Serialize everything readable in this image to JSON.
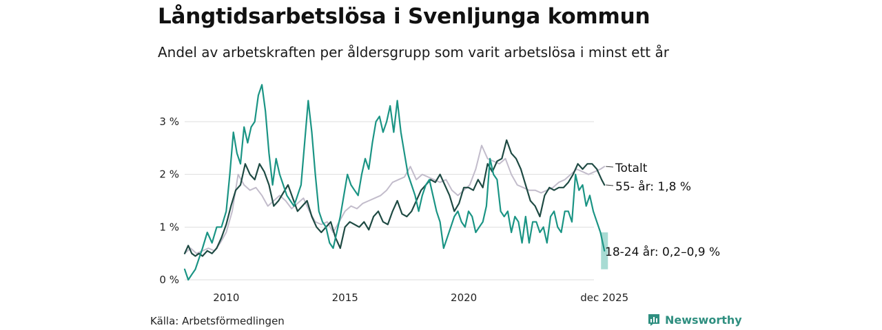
{
  "header": {
    "title": "Långtidsarbetslösa i Svenljunga kommun",
    "subtitle": "Andel av arbetskraften per åldersgrupp som varit arbetslösa i minst ett år"
  },
  "footer": {
    "source": "Källa: Arbetsförmedlingen",
    "brand": "Newsworthy"
  },
  "colors": {
    "totalt": "#c2bccb",
    "age55": "#1e4a43",
    "age1824": "#1a9484",
    "band": "#a8dbd3",
    "grid": "#dddddd"
  },
  "chart_data": {
    "type": "line",
    "title": "Långtidsarbetslösa i Svenljunga kommun",
    "subtitle": "Andel av arbetskraften per åldersgrupp som varit arbetslösa i minst ett år",
    "xlabel": "",
    "ylabel": "",
    "xlim": [
      2008.25,
      2026.0
    ],
    "ylim": [
      0,
      3.8
    ],
    "grid": true,
    "y_ticks": [
      0,
      1,
      2,
      3
    ],
    "y_tick_labels": [
      "0 %",
      "1 %",
      "2 %",
      "3 %"
    ],
    "x_ticks": [
      2010,
      2015,
      2020,
      2025.92
    ],
    "x_tick_labels": [
      "2010",
      "2015",
      "2020",
      "dec 2025"
    ],
    "series": [
      {
        "name": "Totalt",
        "label": "Totalt",
        "x": [
          2008.25,
          2008.5,
          2008.75,
          2009.0,
          2009.25,
          2009.5,
          2009.75,
          2010.0,
          2010.25,
          2010.5,
          2010.75,
          2011.0,
          2011.25,
          2011.5,
          2011.75,
          2012.0,
          2012.25,
          2012.5,
          2012.75,
          2013.0,
          2013.25,
          2013.5,
          2013.75,
          2014.0,
          2014.25,
          2014.5,
          2014.75,
          2015.0,
          2015.25,
          2015.5,
          2015.75,
          2016.0,
          2016.25,
          2016.5,
          2016.75,
          2017.0,
          2017.25,
          2017.5,
          2017.75,
          2018.0,
          2018.25,
          2018.5,
          2018.75,
          2019.0,
          2019.25,
          2019.5,
          2019.75,
          2020.0,
          2020.25,
          2020.5,
          2020.75,
          2021.0,
          2021.25,
          2021.5,
          2021.75,
          2022.0,
          2022.25,
          2022.5,
          2022.75,
          2023.0,
          2023.25,
          2023.5,
          2023.75,
          2024.0,
          2024.25,
          2024.5,
          2024.75,
          2025.0,
          2025.25,
          2025.5,
          2025.75,
          2025.92
        ],
        "values": [
          0.5,
          0.6,
          0.5,
          0.55,
          0.6,
          0.55,
          0.7,
          0.9,
          1.3,
          2.0,
          1.8,
          1.7,
          1.75,
          1.6,
          1.4,
          1.5,
          1.6,
          1.5,
          1.35,
          1.45,
          1.55,
          1.3,
          1.1,
          1.05,
          1.1,
          0.9,
          1.1,
          1.3,
          1.4,
          1.35,
          1.45,
          1.5,
          1.55,
          1.6,
          1.7,
          1.85,
          1.9,
          1.95,
          2.15,
          1.9,
          2.0,
          1.95,
          1.9,
          1.85,
          1.9,
          1.7,
          1.6,
          1.7,
          1.8,
          2.1,
          2.55,
          2.3,
          2.25,
          2.2,
          2.3,
          2.0,
          1.8,
          1.75,
          1.7,
          1.7,
          1.65,
          1.7,
          1.75,
          1.85,
          1.9,
          2.0,
          2.1,
          2.05,
          2.0,
          2.05,
          2.1,
          2.15
        ]
      },
      {
        "name": "55- år",
        "label": "55- år: 1,8 %",
        "x": [
          2008.25,
          2008.4,
          2008.55,
          2008.7,
          2008.85,
          2009.0,
          2009.2,
          2009.4,
          2009.6,
          2009.8,
          2010.0,
          2010.2,
          2010.4,
          2010.6,
          2010.8,
          2011.0,
          2011.2,
          2011.4,
          2011.6,
          2011.8,
          2012.0,
          2012.2,
          2012.4,
          2012.6,
          2012.8,
          2013.0,
          2013.2,
          2013.4,
          2013.6,
          2013.8,
          2014.0,
          2014.2,
          2014.4,
          2014.6,
          2014.8,
          2015.0,
          2015.2,
          2015.4,
          2015.6,
          2015.8,
          2016.0,
          2016.2,
          2016.4,
          2016.6,
          2016.8,
          2017.0,
          2017.2,
          2017.4,
          2017.6,
          2017.8,
          2018.0,
          2018.2,
          2018.4,
          2018.6,
          2018.8,
          2019.0,
          2019.2,
          2019.4,
          2019.6,
          2019.8,
          2020.0,
          2020.2,
          2020.4,
          2020.6,
          2020.8,
          2021.0,
          2021.2,
          2021.4,
          2021.6,
          2021.8,
          2022.0,
          2022.2,
          2022.4,
          2022.6,
          2022.8,
          2023.0,
          2023.2,
          2023.4,
          2023.6,
          2023.8,
          2024.0,
          2024.2,
          2024.4,
          2024.6,
          2024.8,
          2025.0,
          2025.2,
          2025.4,
          2025.6,
          2025.8,
          2025.92
        ],
        "values": [
          0.5,
          0.65,
          0.5,
          0.45,
          0.5,
          0.45,
          0.55,
          0.5,
          0.6,
          0.8,
          1.05,
          1.4,
          1.7,
          1.8,
          2.2,
          2.0,
          1.9,
          2.2,
          2.05,
          1.8,
          1.4,
          1.5,
          1.65,
          1.8,
          1.55,
          1.3,
          1.4,
          1.5,
          1.2,
          1.0,
          0.9,
          1.0,
          1.1,
          0.8,
          0.6,
          1.0,
          1.1,
          1.05,
          1.0,
          1.1,
          0.95,
          1.2,
          1.3,
          1.1,
          1.05,
          1.3,
          1.5,
          1.25,
          1.2,
          1.3,
          1.5,
          1.7,
          1.8,
          1.9,
          1.85,
          2.0,
          1.8,
          1.6,
          1.3,
          1.45,
          1.75,
          1.75,
          1.7,
          1.9,
          1.75,
          2.2,
          2.05,
          2.25,
          2.3,
          2.65,
          2.4,
          2.3,
          2.1,
          1.8,
          1.5,
          1.4,
          1.2,
          1.6,
          1.75,
          1.7,
          1.75,
          1.75,
          1.85,
          2.0,
          2.2,
          2.1,
          2.2,
          2.2,
          2.1,
          1.9,
          1.8
        ]
      },
      {
        "name": "18-24 år",
        "label": "18-24 år: 0,2–0,9 %",
        "x": [
          2008.25,
          2008.4,
          2008.55,
          2008.7,
          2008.85,
          2009.0,
          2009.2,
          2009.4,
          2009.6,
          2009.8,
          2010.0,
          2010.15,
          2010.3,
          2010.45,
          2010.6,
          2010.75,
          2010.9,
          2011.05,
          2011.2,
          2011.35,
          2011.5,
          2011.65,
          2011.8,
          2011.95,
          2012.1,
          2012.25,
          2012.4,
          2012.55,
          2012.7,
          2012.85,
          2013.0,
          2013.15,
          2013.3,
          2013.45,
          2013.6,
          2013.75,
          2013.9,
          2014.05,
          2014.2,
          2014.35,
          2014.5,
          2014.65,
          2014.8,
          2014.95,
          2015.1,
          2015.25,
          2015.4,
          2015.55,
          2015.7,
          2015.85,
          2016.0,
          2016.15,
          2016.3,
          2016.45,
          2016.6,
          2016.75,
          2016.9,
          2017.05,
          2017.2,
          2017.35,
          2017.5,
          2017.65,
          2017.8,
          2017.95,
          2018.1,
          2018.25,
          2018.4,
          2018.55,
          2018.7,
          2018.85,
          2019.0,
          2019.15,
          2019.3,
          2019.45,
          2019.6,
          2019.75,
          2019.9,
          2020.05,
          2020.2,
          2020.35,
          2020.5,
          2020.65,
          2020.8,
          2020.95,
          2021.1,
          2021.25,
          2021.4,
          2021.55,
          2021.7,
          2021.85,
          2022.0,
          2022.15,
          2022.3,
          2022.45,
          2022.6,
          2022.75,
          2022.9,
          2023.05,
          2023.2,
          2023.35,
          2023.5,
          2023.65,
          2023.8,
          2023.95,
          2024.1,
          2024.25,
          2024.4,
          2024.55,
          2024.7,
          2024.85,
          2025.0,
          2025.15,
          2025.3,
          2025.45,
          2025.6,
          2025.75,
          2025.92
        ],
        "values": [
          0.2,
          0.0,
          0.1,
          0.2,
          0.4,
          0.6,
          0.9,
          0.7,
          1.0,
          1.0,
          1.3,
          2.0,
          2.8,
          2.4,
          2.2,
          2.9,
          2.6,
          2.9,
          3.0,
          3.5,
          3.7,
          3.2,
          2.4,
          1.8,
          2.3,
          2.0,
          1.8,
          1.6,
          1.5,
          1.4,
          1.6,
          1.8,
          2.6,
          3.4,
          2.8,
          2.0,
          1.3,
          1.1,
          1.0,
          0.7,
          0.6,
          0.9,
          1.2,
          1.6,
          2.0,
          1.8,
          1.7,
          1.6,
          2.0,
          2.3,
          2.1,
          2.6,
          3.0,
          3.1,
          2.8,
          3.0,
          3.3,
          2.8,
          3.4,
          2.8,
          2.4,
          2.0,
          1.8,
          1.6,
          1.3,
          1.6,
          1.8,
          1.9,
          1.6,
          1.3,
          1.1,
          0.6,
          0.8,
          1.0,
          1.2,
          1.3,
          1.1,
          1.0,
          1.3,
          1.2,
          0.9,
          1.0,
          1.1,
          1.4,
          2.3,
          2.0,
          1.9,
          1.3,
          1.2,
          1.3,
          0.9,
          1.2,
          1.1,
          0.7,
          1.2,
          0.7,
          1.1,
          1.1,
          0.9,
          1.0,
          0.7,
          1.2,
          1.3,
          1.0,
          0.9,
          1.3,
          1.3,
          1.1,
          2.0,
          1.7,
          1.8,
          1.4,
          1.6,
          1.3,
          1.1,
          0.9,
          0.55
        ]
      }
    ],
    "band": {
      "name": "18-24 år interval",
      "x": 2025.92,
      "low": 0.2,
      "high": 0.9
    }
  }
}
